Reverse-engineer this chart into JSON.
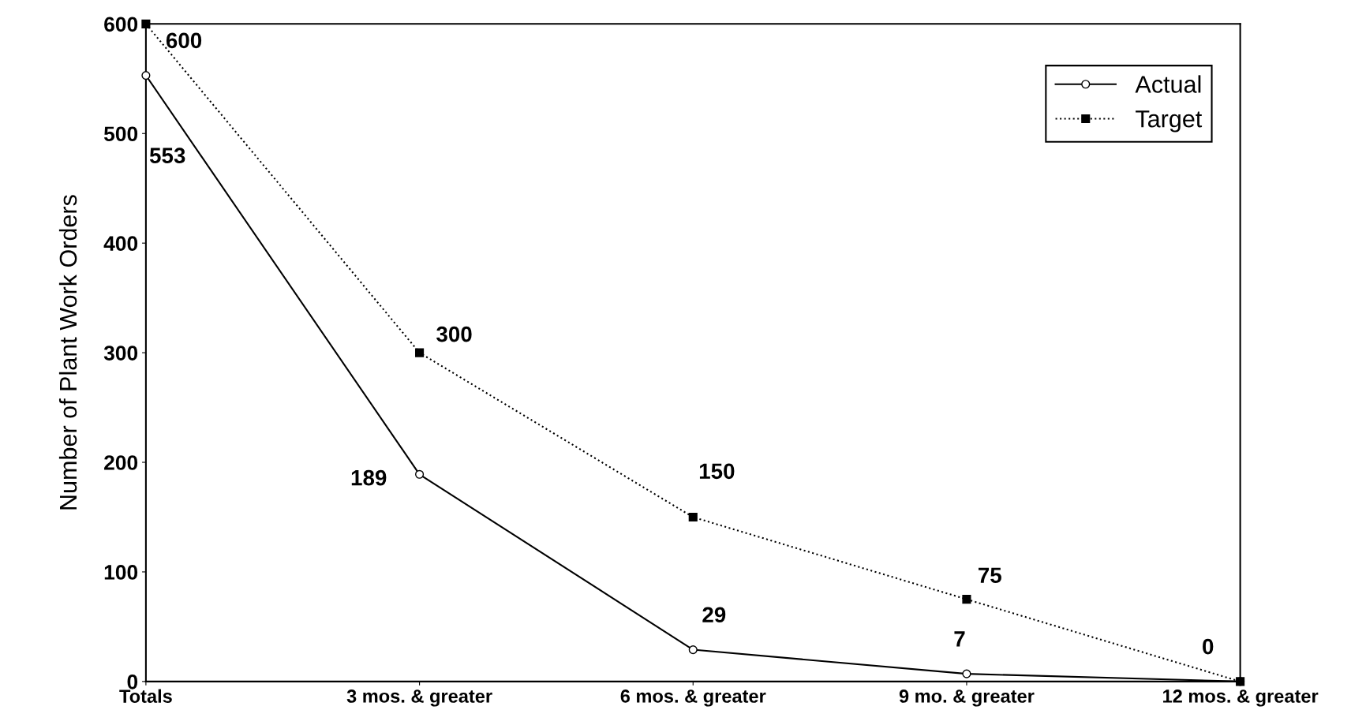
{
  "chart_data": {
    "type": "line",
    "ylabel": "Number of Plant Work Orders",
    "categories": [
      "Totals",
      "3 mos. & greater",
      "6 mos. & greater",
      "9 mo. & greater",
      "12 mos. & greater"
    ],
    "series": [
      {
        "name": "Actual",
        "color": "#000000",
        "values": [
          553,
          189,
          29,
          7,
          0
        ],
        "marker": "circle",
        "line_style": "solid",
        "value_labels": [
          "553",
          "189",
          "29",
          "7",
          null
        ]
      },
      {
        "name": "Target",
        "color": "#000000",
        "values": [
          600,
          300,
          150,
          75,
          0
        ],
        "marker": "square",
        "line_style": "dotted",
        "value_labels": [
          "600",
          "300",
          "150",
          "75",
          "0"
        ]
      }
    ],
    "ylim": [
      0,
      600
    ],
    "yticks": [
      0,
      100,
      200,
      300,
      400,
      500,
      600
    ],
    "grid": false,
    "legend": "top right"
  }
}
